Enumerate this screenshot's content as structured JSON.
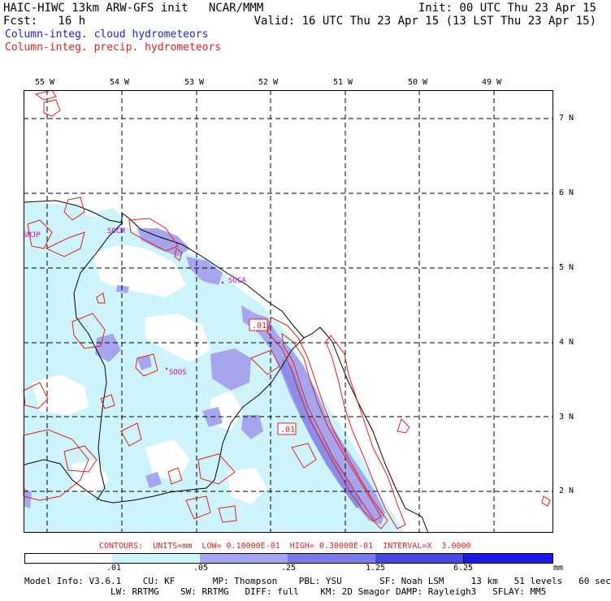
{
  "header": {
    "line1_left": "HAIC-HIWC 13km ARW-GFS init   NCAR/MMM",
    "line1_right": "Init: 00 UTC Thu 23 Apr 15",
    "line2_left": "Fcst:   16 h",
    "line2_right": "Valid: 16 UTC Thu 23 Apr 15 (13 LST Thu 23 Apr 15)",
    "legend_cloud": "Column-integ. cloud hydrometeors",
    "legend_precip": "Column-integ. precip. hydrometeors"
  },
  "colors": {
    "cloud_label": "#2222cc",
    "precip_label": "#dd2222",
    "fill_light": "#ccf4fa",
    "fill_mid": "#a6a6ee",
    "fill_dark": "#5a5ae6",
    "contour": "#e02020",
    "station": "#cc00cc"
  },
  "axes": {
    "lon_labels": [
      "55 W",
      "54 W",
      "53 W",
      "52 W",
      "51 W",
      "50 W",
      "49 W"
    ],
    "lat_labels": [
      "7 N",
      "6 N",
      "5 N",
      "4 N",
      "3 N",
      "2 N"
    ]
  },
  "stations": [
    "SMJP",
    "SOCM",
    "SOCA",
    "SOOS"
  ],
  "contour_labels": [
    ".01",
    ".01"
  ],
  "contours_line": "CONTOURS:  UNITS=mm  LOW= 0.10000E-01  HIGH= 0.30000E-01  INTERVAL=X  3.0000",
  "colorbar": {
    "ticks": [
      ".01",
      ".05",
      ".25",
      "1.25",
      "6.25"
    ],
    "units": "mm"
  },
  "footer": {
    "line1": "Model Info: V3.6.1    CU: KF       MP: Thompson    PBL: YSU       SF: Noah LSM     13 km   51 levels   60 sec",
    "line2": "                LW: RRTMG    SW: RRTMG   DIFF: full    KM: 2D Smagor DAMP: Rayleigh3   SFLAY: MM5"
  }
}
